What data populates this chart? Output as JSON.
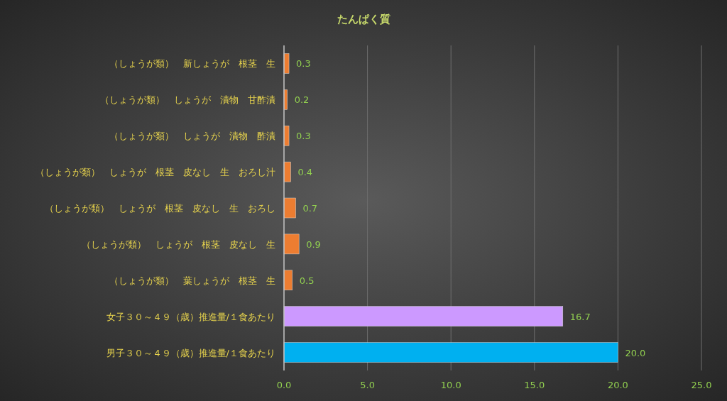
{
  "chart_data": {
    "type": "bar",
    "orientation": "horizontal",
    "title": "たんぱく質",
    "categories": [
      "（しょうが類）　新しょうが　根茎　生",
      "（しょうが類）　しょうが　漬物　甘酢漬",
      "（しょうが類）　しょうが　漬物　酢漬",
      "（しょうが類）　しょうが　根茎　皮なし　生　おろし汁",
      "（しょうが類）　しょうが　根茎　皮なし　生　おろし",
      "（しょうが類）　しょうが　根茎　皮なし　生",
      "（しょうが類）　葉しょうが　根茎　生",
      "女子３０～４９（歳）推進量/１食あたり",
      "男子３０～４９（歳）推進量/１食あたり"
    ],
    "values": [
      0.3,
      0.2,
      0.3,
      0.4,
      0.7,
      0.9,
      0.5,
      16.7,
      20.0
    ],
    "colors": [
      "#ed7d31",
      "#ed7d31",
      "#ed7d31",
      "#ed7d31",
      "#ed7d31",
      "#ed7d31",
      "#ed7d31",
      "#cc99ff",
      "#00b0f0"
    ],
    "value_labels": [
      "0.3",
      "0.2",
      "0.3",
      "0.4",
      "0.7",
      "0.9",
      "0.5",
      "16.7",
      "20.0"
    ],
    "xlim": [
      0,
      25
    ],
    "xticks": [
      {
        "value": 0,
        "label": "0.0"
      },
      {
        "value": 5,
        "label": "5.0"
      },
      {
        "value": 10,
        "label": "10.0"
      },
      {
        "value": 15,
        "label": "15.0"
      },
      {
        "value": 20,
        "label": "20.0"
      },
      {
        "value": 25,
        "label": "25.0"
      }
    ],
    "grid": "x"
  }
}
